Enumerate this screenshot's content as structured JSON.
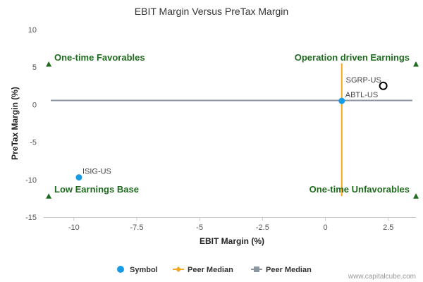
{
  "chart_data": {
    "type": "scatter",
    "title": "EBIT Margin Versus PreTax Margin",
    "xlabel": "EBIT Margin (%)",
    "ylabel": "PreTax Margin (%)",
    "xlim": [
      -11.2,
      3.6
    ],
    "ylim": [
      -15,
      10
    ],
    "x_ticks": [
      -10,
      -7.5,
      -5,
      -2.5,
      0,
      2.5
    ],
    "x_tick_labels": [
      "-10",
      "-7.5",
      "-5",
      "-2.5",
      "0",
      "2.5"
    ],
    "y_ticks": [
      -15,
      -10,
      -5,
      0,
      5,
      10
    ],
    "y_tick_labels": [
      "-15",
      "-10",
      "-5",
      "0",
      "5",
      "10"
    ],
    "grid": false,
    "points": [
      {
        "label": "ISIG-US",
        "x": -9.8,
        "y": -9.7,
        "kind": "symbol"
      },
      {
        "label": "ABTL-US",
        "x": 0.65,
        "y": 0.5,
        "kind": "symbol"
      },
      {
        "label": "SGRP-US",
        "x": 2.3,
        "y": 2.5,
        "kind": "peer"
      }
    ],
    "peer_median_x": 0.65,
    "peer_median_x_range": [
      -12.2,
      5.5
    ],
    "peer_median_y": 0.55,
    "quadrant_labels": {
      "top_left": "One-time Favorables",
      "top_right": "Operation driven Earnings",
      "bottom_left": "Low Earnings Base",
      "bottom_right": "One-time Unfavorables"
    },
    "corner_markers": [
      {
        "x": -11.0,
        "y": 5.4
      },
      {
        "x": 3.6,
        "y": 5.4
      },
      {
        "x": -11.0,
        "y": -12.2
      },
      {
        "x": 3.6,
        "y": -12.2
      }
    ],
    "legend": {
      "placement": "bottom",
      "entries": [
        {
          "label": "Symbol",
          "marker": "circle",
          "color": "#1a9be6"
        },
        {
          "label": "Peer Median",
          "marker": "diamond-line",
          "color": "#f5a623"
        },
        {
          "label": "Peer Median",
          "marker": "square-line",
          "color": "#8c96a0"
        }
      ]
    },
    "colors": {
      "symbol": "#1a9be6",
      "peer_median_vertical": "#f5a623",
      "peer_median_horizontal": "#8c96a0",
      "quadrant_text": "#1e6b1e",
      "marker": "#1e6b1e",
      "peer_point_stroke": "#000000"
    }
  },
  "credit": "www.capitalcube.com"
}
